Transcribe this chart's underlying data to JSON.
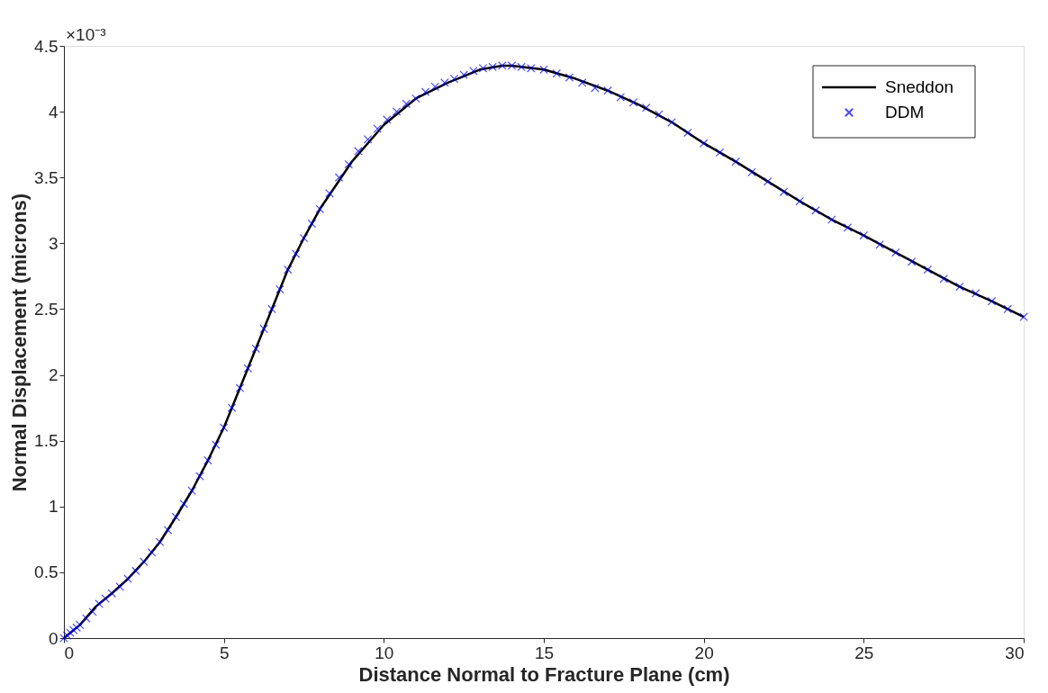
{
  "chart_data": {
    "type": "line",
    "xlabel": "Distance Normal to Fracture Plane (cm)",
    "ylabel": "Normal Displacement (microns)",
    "annotations": [
      "×10⁻³"
    ],
    "xlim": [
      0,
      30
    ],
    "xticks": [
      0,
      5,
      10,
      15,
      20,
      25,
      30
    ],
    "ylim": [
      0,
      4.5
    ],
    "yticks": [
      0,
      0.5,
      1,
      1.5,
      2,
      2.5,
      3,
      3.5,
      4,
      4.5
    ],
    "grid": false,
    "legend": "top right",
    "series": [
      {
        "name": "Sneddon",
        "type": "line",
        "color": "#000000",
        "marker": "none",
        "line_style": "solid",
        "x": [
          0,
          0.5,
          1,
          1.5,
          2,
          2.5,
          3,
          3.5,
          4,
          4.5,
          5,
          5.5,
          6,
          6.5,
          7,
          7.5,
          8,
          9,
          10,
          11,
          12,
          13,
          13.7,
          14,
          15,
          16,
          17,
          18,
          19,
          20,
          21,
          22,
          23,
          24,
          25,
          26,
          27,
          28,
          29,
          30
        ],
        "values": [
          0,
          0.1,
          0.24,
          0.34,
          0.45,
          0.58,
          0.73,
          0.92,
          1.12,
          1.35,
          1.6,
          1.9,
          2.2,
          2.5,
          2.8,
          3.04,
          3.26,
          3.62,
          3.9,
          4.1,
          4.22,
          4.32,
          4.35,
          4.35,
          4.32,
          4.25,
          4.16,
          4.05,
          3.92,
          3.76,
          3.62,
          3.47,
          3.32,
          3.18,
          3.06,
          2.93,
          2.8,
          2.67,
          2.56,
          2.44
        ]
      },
      {
        "name": "DDM",
        "type": "scatter",
        "color": "#0000ff",
        "marker": "cross",
        "x": [
          0,
          0.1,
          0.2,
          0.3,
          0.4,
          0.5,
          0.7,
          0.9,
          1.1,
          1.3,
          1.5,
          1.75,
          2,
          2.25,
          2.5,
          2.75,
          3,
          3.25,
          3.5,
          3.75,
          4,
          4.25,
          4.5,
          4.75,
          5,
          5.25,
          5.5,
          5.75,
          6,
          6.25,
          6.5,
          6.75,
          7,
          7.25,
          7.5,
          7.75,
          8,
          8.3,
          8.6,
          8.9,
          9.2,
          9.5,
          9.8,
          10.1,
          10.4,
          10.7,
          11,
          11.3,
          11.6,
          11.9,
          12.2,
          12.5,
          12.8,
          13.1,
          13.4,
          13.7,
          14,
          14.3,
          14.6,
          15,
          15.4,
          15.8,
          16.2,
          16.6,
          17,
          17.4,
          17.8,
          18.2,
          18.6,
          19,
          19.5,
          20,
          20.5,
          21,
          21.5,
          22,
          22.5,
          23,
          23.5,
          24,
          24.5,
          25,
          25.5,
          26,
          26.5,
          27,
          27.5,
          28,
          28.5,
          29,
          29.5,
          30
        ],
        "values": [
          0,
          0.02,
          0.04,
          0.06,
          0.08,
          0.1,
          0.15,
          0.2,
          0.26,
          0.3,
          0.34,
          0.39,
          0.45,
          0.51,
          0.58,
          0.65,
          0.73,
          0.82,
          0.92,
          1.02,
          1.12,
          1.23,
          1.35,
          1.47,
          1.6,
          1.75,
          1.9,
          2.05,
          2.2,
          2.35,
          2.5,
          2.65,
          2.8,
          2.92,
          3.04,
          3.15,
          3.26,
          3.38,
          3.5,
          3.6,
          3.7,
          3.79,
          3.87,
          3.94,
          4.0,
          4.06,
          4.1,
          4.15,
          4.19,
          4.22,
          4.25,
          4.28,
          4.31,
          4.33,
          4.34,
          4.35,
          4.35,
          4.34,
          4.33,
          4.32,
          4.29,
          4.26,
          4.22,
          4.18,
          4.16,
          4.11,
          4.07,
          4.03,
          3.98,
          3.92,
          3.84,
          3.76,
          3.69,
          3.62,
          3.54,
          3.47,
          3.39,
          3.32,
          3.25,
          3.18,
          3.12,
          3.06,
          2.99,
          2.93,
          2.86,
          2.8,
          2.73,
          2.67,
          2.62,
          2.56,
          2.5,
          2.44
        ]
      }
    ]
  }
}
